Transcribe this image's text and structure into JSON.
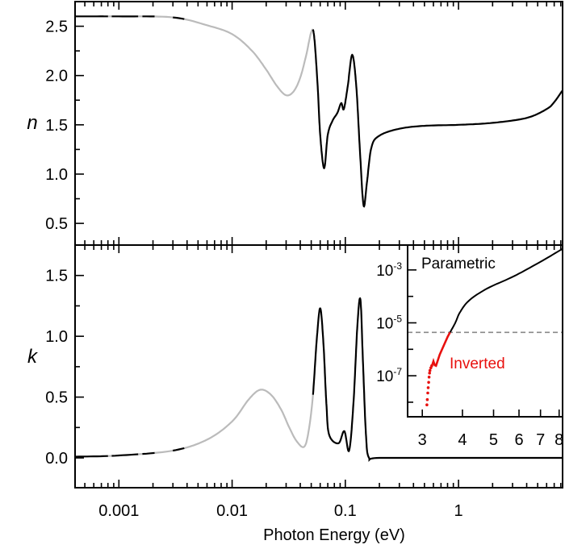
{
  "chart_data": {
    "type": "line",
    "xlabel": "Photon Energy (eV)",
    "x_scale": "log",
    "xlim": [
      0.00041,
      8.3
    ],
    "x_tick_labels": [
      "0.001",
      "0.01",
      "0.1",
      "1"
    ],
    "x_ticks": [
      0.001,
      0.01,
      0.1,
      1
    ],
    "gray_ranges": [
      [
        0.00076,
        0.00085
      ],
      [
        0.0014,
        0.0015
      ],
      [
        0.002,
        0.0029
      ],
      [
        0.0037,
        0.0515
      ]
    ],
    "colors": {
      "main": "#000000",
      "gray": "#bbbbbb",
      "inverted": "#e8100e",
      "threshold": "#888888"
    },
    "panels": [
      {
        "ylabel": "n",
        "ylim": [
          0.28,
          2.75
        ],
        "y_ticks": [
          0.5,
          1.0,
          1.5,
          2.0,
          2.5
        ],
        "y_tick_labels": [
          "0.5",
          "1.0",
          "1.5",
          "2.0",
          "2.5"
        ],
        "points": [
          [
            0.00041,
            2.6
          ],
          [
            0.001,
            2.6
          ],
          [
            0.003,
            2.59
          ],
          [
            0.006,
            2.51
          ],
          [
            0.01,
            2.42
          ],
          [
            0.015,
            2.25
          ],
          [
            0.02,
            2.06
          ],
          [
            0.025,
            1.89
          ],
          [
            0.03,
            1.8
          ],
          [
            0.035,
            1.84
          ],
          [
            0.04,
            1.98
          ],
          [
            0.045,
            2.2
          ],
          [
            0.05,
            2.44
          ],
          [
            0.053,
            2.4
          ],
          [
            0.057,
            1.89
          ],
          [
            0.06,
            1.4
          ],
          [
            0.065,
            1.06
          ],
          [
            0.07,
            1.4
          ],
          [
            0.077,
            1.54
          ],
          [
            0.085,
            1.62
          ],
          [
            0.092,
            1.72
          ],
          [
            0.097,
            1.66
          ],
          [
            0.105,
            1.89
          ],
          [
            0.115,
            2.21
          ],
          [
            0.125,
            1.89
          ],
          [
            0.135,
            1.21
          ],
          [
            0.145,
            0.68
          ],
          [
            0.155,
            0.91
          ],
          [
            0.17,
            1.27
          ],
          [
            0.2,
            1.39
          ],
          [
            0.3,
            1.46
          ],
          [
            0.5,
            1.49
          ],
          [
            1,
            1.5
          ],
          [
            2,
            1.52
          ],
          [
            4,
            1.57
          ],
          [
            6,
            1.66
          ],
          [
            7,
            1.73
          ],
          [
            8.3,
            1.85
          ]
        ]
      },
      {
        "ylabel": "k",
        "ylim": [
          -0.245,
          1.75
        ],
        "y_ticks": [
          0.0,
          0.5,
          1.0,
          1.5
        ],
        "y_tick_labels": [
          "0.0",
          "0.5",
          "1.0",
          "1.5"
        ],
        "points": [
          [
            0.00041,
            0.01
          ],
          [
            0.001,
            0.02
          ],
          [
            0.003,
            0.06
          ],
          [
            0.006,
            0.15
          ],
          [
            0.01,
            0.3
          ],
          [
            0.014,
            0.48
          ],
          [
            0.0177,
            0.56
          ],
          [
            0.022,
            0.52
          ],
          [
            0.027,
            0.4
          ],
          [
            0.032,
            0.25
          ],
          [
            0.037,
            0.14
          ],
          [
            0.043,
            0.09
          ],
          [
            0.047,
            0.2
          ],
          [
            0.0515,
            0.49
          ],
          [
            0.056,
            0.98
          ],
          [
            0.06,
            1.23
          ],
          [
            0.064,
            0.95
          ],
          [
            0.068,
            0.45
          ],
          [
            0.072,
            0.19
          ],
          [
            0.087,
            0.12
          ],
          [
            0.098,
            0.22
          ],
          [
            0.108,
            0.06
          ],
          [
            0.118,
            0.45
          ],
          [
            0.128,
            1.1
          ],
          [
            0.136,
            1.3
          ],
          [
            0.143,
            0.8
          ],
          [
            0.152,
            0.2
          ],
          [
            0.162,
            0.0
          ],
          [
            0.2,
            0.0
          ],
          [
            1,
            0.0
          ],
          [
            8.3,
            0.0
          ]
        ]
      }
    ],
    "inset": {
      "x_scale": "log",
      "y_scale": "log",
      "xlim": [
        2.7,
        8.2
      ],
      "ylim_log10": [
        -8.55,
        -2.06
      ],
      "x_ticks": [
        3,
        4,
        5,
        6,
        7,
        8
      ],
      "x_tick_labels": [
        "3",
        "4",
        "5",
        "6",
        "7",
        "8"
      ],
      "y_ticks_log10": [
        -3,
        -5,
        -7
      ],
      "y_tick_labels": [
        {
          "base": "10",
          "exp": "-3"
        },
        {
          "base": "10",
          "exp": "-5"
        },
        {
          "base": "10",
          "exp": "-7"
        }
      ],
      "threshold_log10": -5.36,
      "parametric_label": "Parametric",
      "inverted_label": "Inverted",
      "parametric_points": [
        [
          3.66,
          -5.36
        ],
        [
          3.8,
          -5.0
        ],
        [
          3.93,
          -4.6
        ],
        [
          4.2,
          -4.15
        ],
        [
          4.78,
          -3.7
        ],
        [
          5.78,
          -3.24
        ],
        [
          6.98,
          -2.7
        ],
        [
          8.2,
          -2.2
        ]
      ],
      "inverted_dots": [
        [
          3.1,
          -8.1
        ],
        [
          3.11,
          -7.9
        ],
        [
          3.12,
          -7.65
        ],
        [
          3.13,
          -7.45
        ],
        [
          3.14,
          -7.25
        ],
        [
          3.15,
          -7.05
        ],
        [
          3.16,
          -6.9
        ],
        [
          3.17,
          -6.8
        ],
        [
          3.19,
          -6.7
        ],
        [
          3.21,
          -6.62
        ]
      ],
      "inverted_line": [
        [
          3.22,
          -6.6
        ],
        [
          3.25,
          -6.45
        ],
        [
          3.28,
          -6.6
        ],
        [
          3.31,
          -6.62
        ],
        [
          3.4,
          -6.2
        ],
        [
          3.5,
          -5.85
        ],
        [
          3.6,
          -5.52
        ],
        [
          3.66,
          -5.36
        ]
      ]
    }
  }
}
